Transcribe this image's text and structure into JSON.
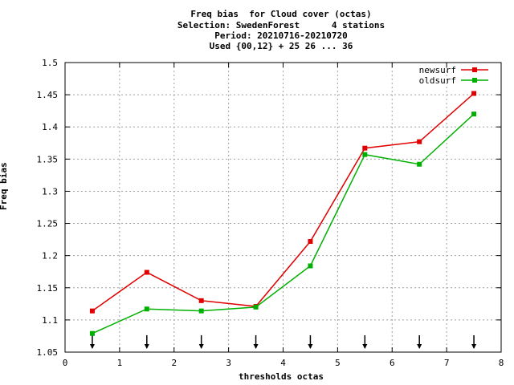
{
  "chart_data": {
    "type": "line",
    "title_lines": [
      "Freq bias  for Cloud cover (octas)",
      "Selection: SwedenForest      4 stations",
      "Period: 20210716-20210720",
      "Used {00,12} + 25 26 ... 36"
    ],
    "xlabel": "thresholds octas",
    "ylabel": "Freq bias",
    "xlim": [
      0,
      8
    ],
    "ylim": [
      1.05,
      1.5
    ],
    "xticks": [
      "0",
      "1",
      "2",
      "3",
      "4",
      "5",
      "6",
      "7",
      "8"
    ],
    "yticks": [
      "1.05",
      "1.1",
      "1.15",
      "1.2",
      "1.25",
      "1.3",
      "1.35",
      "1.4",
      "1.45",
      "1.5"
    ],
    "grid": true,
    "legend_position": "top-right",
    "x": [
      0.5,
      1.5,
      2.5,
      3.5,
      4.5,
      5.5,
      6.5,
      7.5
    ],
    "series": [
      {
        "name": "newsurf",
        "color": "#e00000",
        "values": [
          1.114,
          1.174,
          1.13,
          1.121,
          1.222,
          1.367,
          1.377,
          1.452
        ]
      },
      {
        "name": "oldsurf",
        "color": "#00b000",
        "values": [
          1.079,
          1.117,
          1.114,
          1.12,
          1.184,
          1.357,
          1.342,
          1.42
        ]
      }
    ],
    "arrow_markers_x": [
      0.5,
      1.5,
      2.5,
      3.5,
      4.5,
      5.5,
      6.5,
      7.5
    ]
  }
}
